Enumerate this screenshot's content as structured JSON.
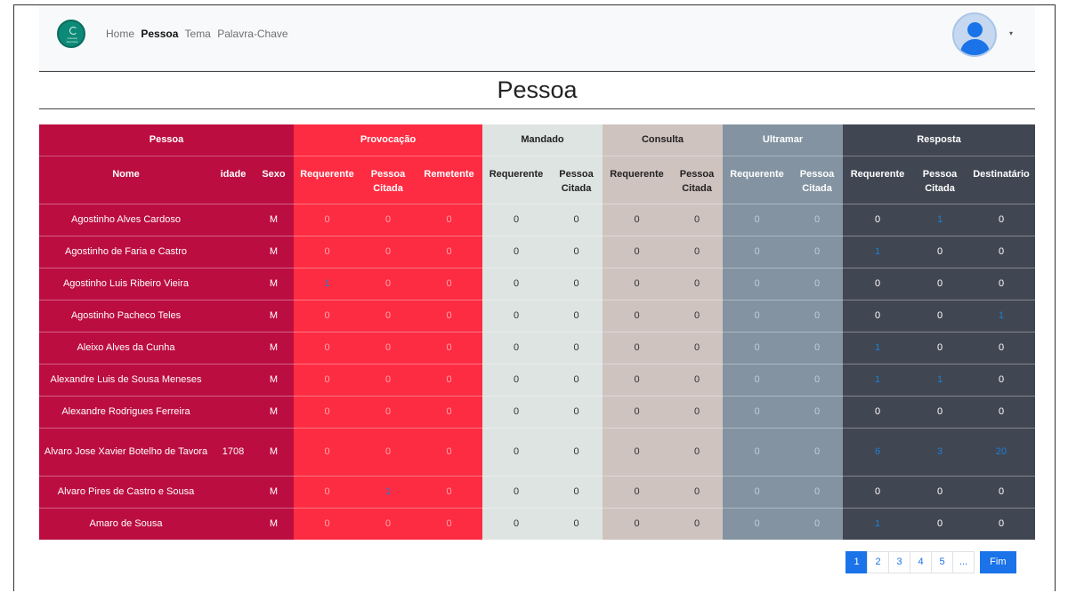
{
  "nav": {
    "logo_text": "Colonial Dominica",
    "links": [
      {
        "label": "Home",
        "active": false
      },
      {
        "label": "Pessoa",
        "active": true
      },
      {
        "label": "Tema",
        "active": false
      },
      {
        "label": "Palavra-Chave",
        "active": false
      }
    ],
    "avatar_icon": "user-avatar-icon",
    "caret": "▾"
  },
  "page_title": "Pessoa",
  "table": {
    "groups": [
      "Pessoa",
      "Provocação",
      "Mandado",
      "Consulta",
      "Ultramar",
      "Resposta"
    ],
    "subheaders": {
      "nome": "Nome",
      "idade": "idade",
      "sexo": "Sexo",
      "requerente": "Requerente",
      "pessoa": "Pessoa",
      "citada": "Citada",
      "remetente": "Remetente",
      "destinatario": "Destinatário"
    },
    "rows": [
      {
        "nome": "Agostinho Alves Cardoso",
        "idade": "",
        "sexo": "M",
        "prov": [
          "0",
          "0",
          "0"
        ],
        "mand": [
          "0",
          "0"
        ],
        "cons": [
          "0",
          "0"
        ],
        "ultr": [
          "0",
          "0"
        ],
        "resp": [
          "0",
          "1",
          "0"
        ]
      },
      {
        "nome": "Agostinho de Faria e Castro",
        "idade": "",
        "sexo": "M",
        "prov": [
          "0",
          "0",
          "0"
        ],
        "mand": [
          "0",
          "0"
        ],
        "cons": [
          "0",
          "0"
        ],
        "ultr": [
          "0",
          "0"
        ],
        "resp": [
          "1",
          "0",
          "0"
        ]
      },
      {
        "nome": "Agostinho Luis Ribeiro Vieira",
        "idade": "",
        "sexo": "M",
        "prov": [
          "1",
          "0",
          "0"
        ],
        "mand": [
          "0",
          "0"
        ],
        "cons": [
          "0",
          "0"
        ],
        "ultr": [
          "0",
          "0"
        ],
        "resp": [
          "0",
          "0",
          "0"
        ]
      },
      {
        "nome": "Agostinho Pacheco Teles",
        "idade": "",
        "sexo": "M",
        "prov": [
          "0",
          "0",
          "0"
        ],
        "mand": [
          "0",
          "0"
        ],
        "cons": [
          "0",
          "0"
        ],
        "ultr": [
          "0",
          "0"
        ],
        "resp": [
          "0",
          "0",
          "1"
        ]
      },
      {
        "nome": "Aleixo Alves da Cunha",
        "idade": "",
        "sexo": "M",
        "prov": [
          "0",
          "0",
          "0"
        ],
        "mand": [
          "0",
          "0"
        ],
        "cons": [
          "0",
          "0"
        ],
        "ultr": [
          "0",
          "0"
        ],
        "resp": [
          "1",
          "0",
          "0"
        ]
      },
      {
        "nome": "Alexandre Luis de Sousa Meneses",
        "idade": "",
        "sexo": "M",
        "prov": [
          "0",
          "0",
          "0"
        ],
        "mand": [
          "0",
          "0"
        ],
        "cons": [
          "0",
          "0"
        ],
        "ultr": [
          "0",
          "0"
        ],
        "resp": [
          "1",
          "1",
          "0"
        ]
      },
      {
        "nome": "Alexandre Rodrigues Ferreira",
        "idade": "",
        "sexo": "M",
        "prov": [
          "0",
          "0",
          "0"
        ],
        "mand": [
          "0",
          "0"
        ],
        "cons": [
          "0",
          "0"
        ],
        "ultr": [
          "0",
          "0"
        ],
        "resp": [
          "0",
          "0",
          "0"
        ]
      },
      {
        "nome": "Alvaro Jose Xavier Botelho de Tavora",
        "idade": "1708",
        "sexo": "M",
        "prov": [
          "0",
          "0",
          "0"
        ],
        "mand": [
          "0",
          "0"
        ],
        "cons": [
          "0",
          "0"
        ],
        "ultr": [
          "0",
          "0"
        ],
        "resp": [
          "6",
          "3",
          "20"
        ],
        "tall": true
      },
      {
        "nome": "Alvaro Pires de Castro e Sousa",
        "idade": "",
        "sexo": "M",
        "prov": [
          "0",
          "1",
          "0"
        ],
        "mand": [
          "0",
          "0"
        ],
        "cons": [
          "0",
          "0"
        ],
        "ultr": [
          "0",
          "0"
        ],
        "resp": [
          "0",
          "0",
          "0"
        ]
      },
      {
        "nome": "Amaro de Sousa",
        "idade": "",
        "sexo": "M",
        "prov": [
          "0",
          "0",
          "0"
        ],
        "mand": [
          "0",
          "0"
        ],
        "cons": [
          "0",
          "0"
        ],
        "ultr": [
          "0",
          "0"
        ],
        "resp": [
          "1",
          "0",
          "0"
        ]
      }
    ]
  },
  "pagination": {
    "pages": [
      "1",
      "2",
      "3",
      "4",
      "5",
      "..."
    ],
    "active": "1",
    "last_label": "Fim"
  },
  "colors": {
    "pessoa": "#bb0d40",
    "provocacao": "#fe2c42",
    "mandado": "#dee4e2",
    "consulta": "#cfc3bf",
    "ultramar": "#8393a1",
    "resposta": "#404652",
    "link": "#1f7ed6"
  }
}
